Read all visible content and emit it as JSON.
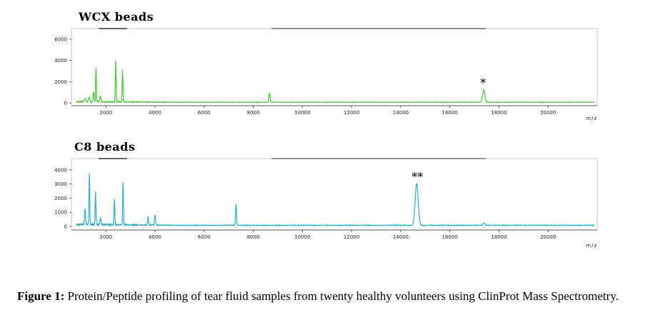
{
  "caption": {
    "label": "Figure 1:",
    "text": "Protein/Peptide profiling of tear fluid samples from twenty healthy volunteers using ClinProt Mass Spectrometry."
  },
  "chart_data": [
    {
      "type": "line",
      "title": "WCX beads",
      "xlabel": "m/z",
      "xlim": [
        600,
        22000
      ],
      "ylim": [
        -300,
        7000
      ],
      "x_ticks": [
        2000,
        4000,
        6000,
        8000,
        10000,
        12000,
        14000,
        16000,
        18000,
        20000
      ],
      "y_ticks": [
        0,
        2000,
        4000,
        6000
      ],
      "color": "#49c934",
      "baseline": 50,
      "peaks": [
        {
          "x": 1150,
          "y": 300,
          "w": 30
        },
        {
          "x": 1320,
          "y": 450,
          "w": 25
        },
        {
          "x": 1500,
          "y": 900,
          "w": 20
        },
        {
          "x": 1600,
          "y": 3200,
          "w": 15
        },
        {
          "x": 1780,
          "y": 600,
          "w": 20
        },
        {
          "x": 2400,
          "y": 3900,
          "w": 15
        },
        {
          "x": 2680,
          "y": 3000,
          "w": 15
        },
        {
          "x": 8660,
          "y": 900,
          "w": 25
        },
        {
          "x": 17380,
          "y": 1200,
          "w": 45
        }
      ],
      "annotations": [
        {
          "x": 17350,
          "text": "*"
        }
      ]
    },
    {
      "type": "line",
      "title": "C8 beads",
      "xlabel": "m/z",
      "xlim": [
        600,
        22000
      ],
      "ylim": [
        -300,
        4800
      ],
      "x_ticks": [
        2000,
        4000,
        6000,
        8000,
        10000,
        12000,
        14000,
        16000,
        18000,
        20000
      ],
      "y_ticks": [
        0,
        1000,
        2000,
        3000,
        4000
      ],
      "color": "#2aaed2",
      "baseline": 80,
      "peaks": [
        {
          "x": 1150,
          "y": 1100,
          "w": 20
        },
        {
          "x": 1330,
          "y": 3600,
          "w": 15
        },
        {
          "x": 1580,
          "y": 2400,
          "w": 15
        },
        {
          "x": 1780,
          "y": 500,
          "w": 20
        },
        {
          "x": 2350,
          "y": 1800,
          "w": 15
        },
        {
          "x": 2700,
          "y": 3000,
          "w": 15
        },
        {
          "x": 3720,
          "y": 600,
          "w": 20
        },
        {
          "x": 4000,
          "y": 700,
          "w": 20
        },
        {
          "x": 7300,
          "y": 1500,
          "w": 20
        },
        {
          "x": 14650,
          "y": 2950,
          "w": 60
        },
        {
          "x": 17400,
          "y": 150,
          "w": 40
        }
      ],
      "annotations": [
        {
          "x": 14680,
          "text": "**"
        }
      ]
    }
  ]
}
